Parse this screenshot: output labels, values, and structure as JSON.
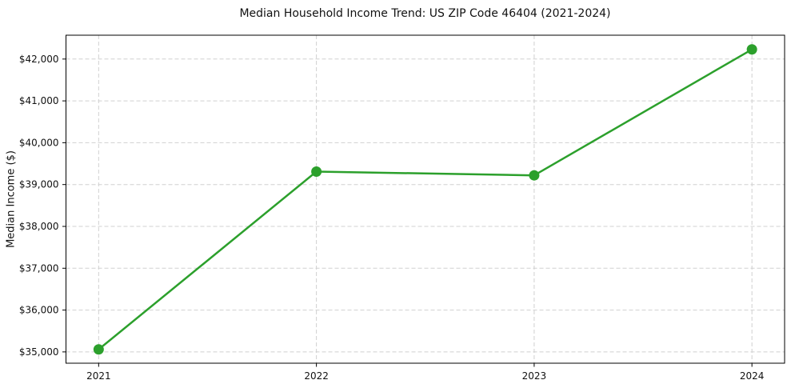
{
  "chart_data": {
    "type": "line",
    "title": "Median Household Income Trend: US ZIP Code 46404 (2021-2024)",
    "xlabel": "",
    "ylabel": "Median Income ($)",
    "x": [
      2021,
      2022,
      2023,
      2024
    ],
    "x_tick_labels": [
      "2021",
      "2022",
      "2023",
      "2024"
    ],
    "series": [
      {
        "name": "Median Household Income",
        "values": [
          35060,
          39310,
          39220,
          42230
        ]
      }
    ],
    "y_ticks": [
      35000,
      36000,
      37000,
      38000,
      39000,
      40000,
      41000,
      42000
    ],
    "y_tick_labels": [
      "$35,000",
      "$36,000",
      "$37,000",
      "$38,000",
      "$39,000",
      "$40,000",
      "$41,000",
      "$42,000"
    ],
    "xlim": [
      2020.85,
      2024.15
    ],
    "ylim": [
      34730,
      42570
    ],
    "grid": "both-dashed",
    "legend_position": "none",
    "colors": {
      "line": "#2ca02c",
      "marker": "#2ca02c",
      "grid": "#d0d0d0",
      "spine": "#000000",
      "text": "#111111",
      "background": "#ffffff"
    },
    "line_width": 2.5,
    "marker_radius": 6.5
  }
}
